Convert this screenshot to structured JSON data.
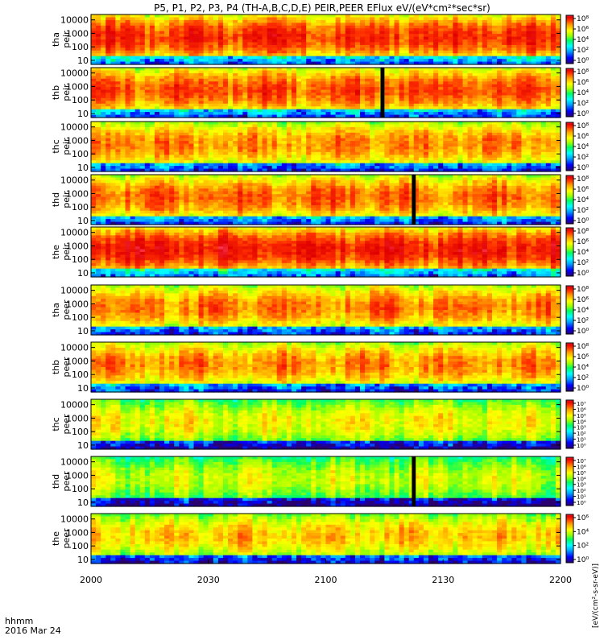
{
  "chart_data": {
    "type": "heatmap",
    "title": "P5, P1, P2, P3, P4 (TH-A,B,C,D,E) PEIR,PEER EFlux eV/(eV*cm²*sec*sr)",
    "date_label": "2016 Mar 24",
    "time_format_label": "hhmm",
    "x_ticks": [
      "2000",
      "2030",
      "2100",
      "2130",
      "2200"
    ],
    "x_range_hhmm": [
      "20:00",
      "22:00"
    ],
    "y_scale": "log",
    "y_ticks": [
      "10",
      "100",
      "1000",
      "10000"
    ],
    "y_range_eV": [
      5,
      25000
    ],
    "colorbar_label": "[eV/(cm²-s-sr-eV)]",
    "colormap": [
      "#2a0070",
      "#0000ff",
      "#00a0ff",
      "#00ffff",
      "#00ff60",
      "#a0ff00",
      "#ffff00",
      "#ffa000",
      "#ff3000",
      "#e00000",
      "#ff4060"
    ],
    "panels": [
      {
        "name": "tha peir",
        "line1": "tha",
        "line2": "peir",
        "cbar_ticks": [
          "10⁸",
          "10⁶",
          "10⁴",
          "10²",
          "10⁰"
        ],
        "dominant_level": 0.82,
        "gaps": []
      },
      {
        "name": "thb peir",
        "line1": "thb",
        "line2": "peir",
        "cbar_ticks": [
          "10⁸",
          "10⁶",
          "10⁴",
          "10²",
          "10⁰"
        ],
        "dominant_level": 0.78,
        "gaps": [
          {
            "from": "21:14",
            "to": "21:15"
          }
        ]
      },
      {
        "name": "thc peir",
        "line1": "thc",
        "line2": "peir",
        "cbar_ticks": [
          "10⁸",
          "10⁶",
          "10⁴",
          "10²",
          "10⁰"
        ],
        "dominant_level": 0.72,
        "gaps": []
      },
      {
        "name": "thd peir",
        "line1": "thd",
        "line2": "peir",
        "cbar_ticks": [
          "10⁸",
          "10⁶",
          "10⁴",
          "10²",
          "10⁰"
        ],
        "dominant_level": 0.76,
        "gaps": [
          {
            "from": "21:22",
            "to": "21:23"
          }
        ]
      },
      {
        "name": "the peir",
        "line1": "the",
        "line2": "peir",
        "cbar_ticks": [
          "10⁸",
          "10⁶",
          "10⁴",
          "10²",
          "10⁰"
        ],
        "dominant_level": 0.86,
        "gaps": []
      },
      {
        "name": "tha peer",
        "line1": "tha",
        "line2": "peer",
        "cbar_ticks": [
          "10⁸",
          "10⁶",
          "10⁴",
          "10²",
          "10⁰"
        ],
        "dominant_level": 0.74,
        "gaps": []
      },
      {
        "name": "thb peer",
        "line1": "thb",
        "line2": "peer",
        "cbar_ticks": [
          "10⁸",
          "10⁶",
          "10⁴",
          "10²",
          "10⁰"
        ],
        "dominant_level": 0.72,
        "gaps": []
      },
      {
        "name": "thc peer",
        "line1": "thc",
        "line2": "peer",
        "cbar_ticks": [
          "10⁷",
          "10⁶",
          "10⁵",
          "10⁴",
          "10³",
          "10²",
          "10¹",
          "10⁰"
        ],
        "dominant_level": 0.6,
        "gaps": []
      },
      {
        "name": "thd peer",
        "line1": "thd",
        "line2": "peer",
        "cbar_ticks": [
          "10⁷",
          "10⁶",
          "10⁵",
          "10⁴",
          "10³",
          "10²",
          "10¹",
          "10⁰"
        ],
        "dominant_level": 0.55,
        "gaps": [
          {
            "from": "21:22",
            "to": "21:23"
          }
        ]
      },
      {
        "name": "the peer",
        "line1": "the",
        "line2": "peer",
        "cbar_ticks": [
          "10⁶",
          "10⁴",
          "10²",
          "10⁰"
        ],
        "dominant_level": 0.66,
        "gaps": []
      }
    ]
  }
}
